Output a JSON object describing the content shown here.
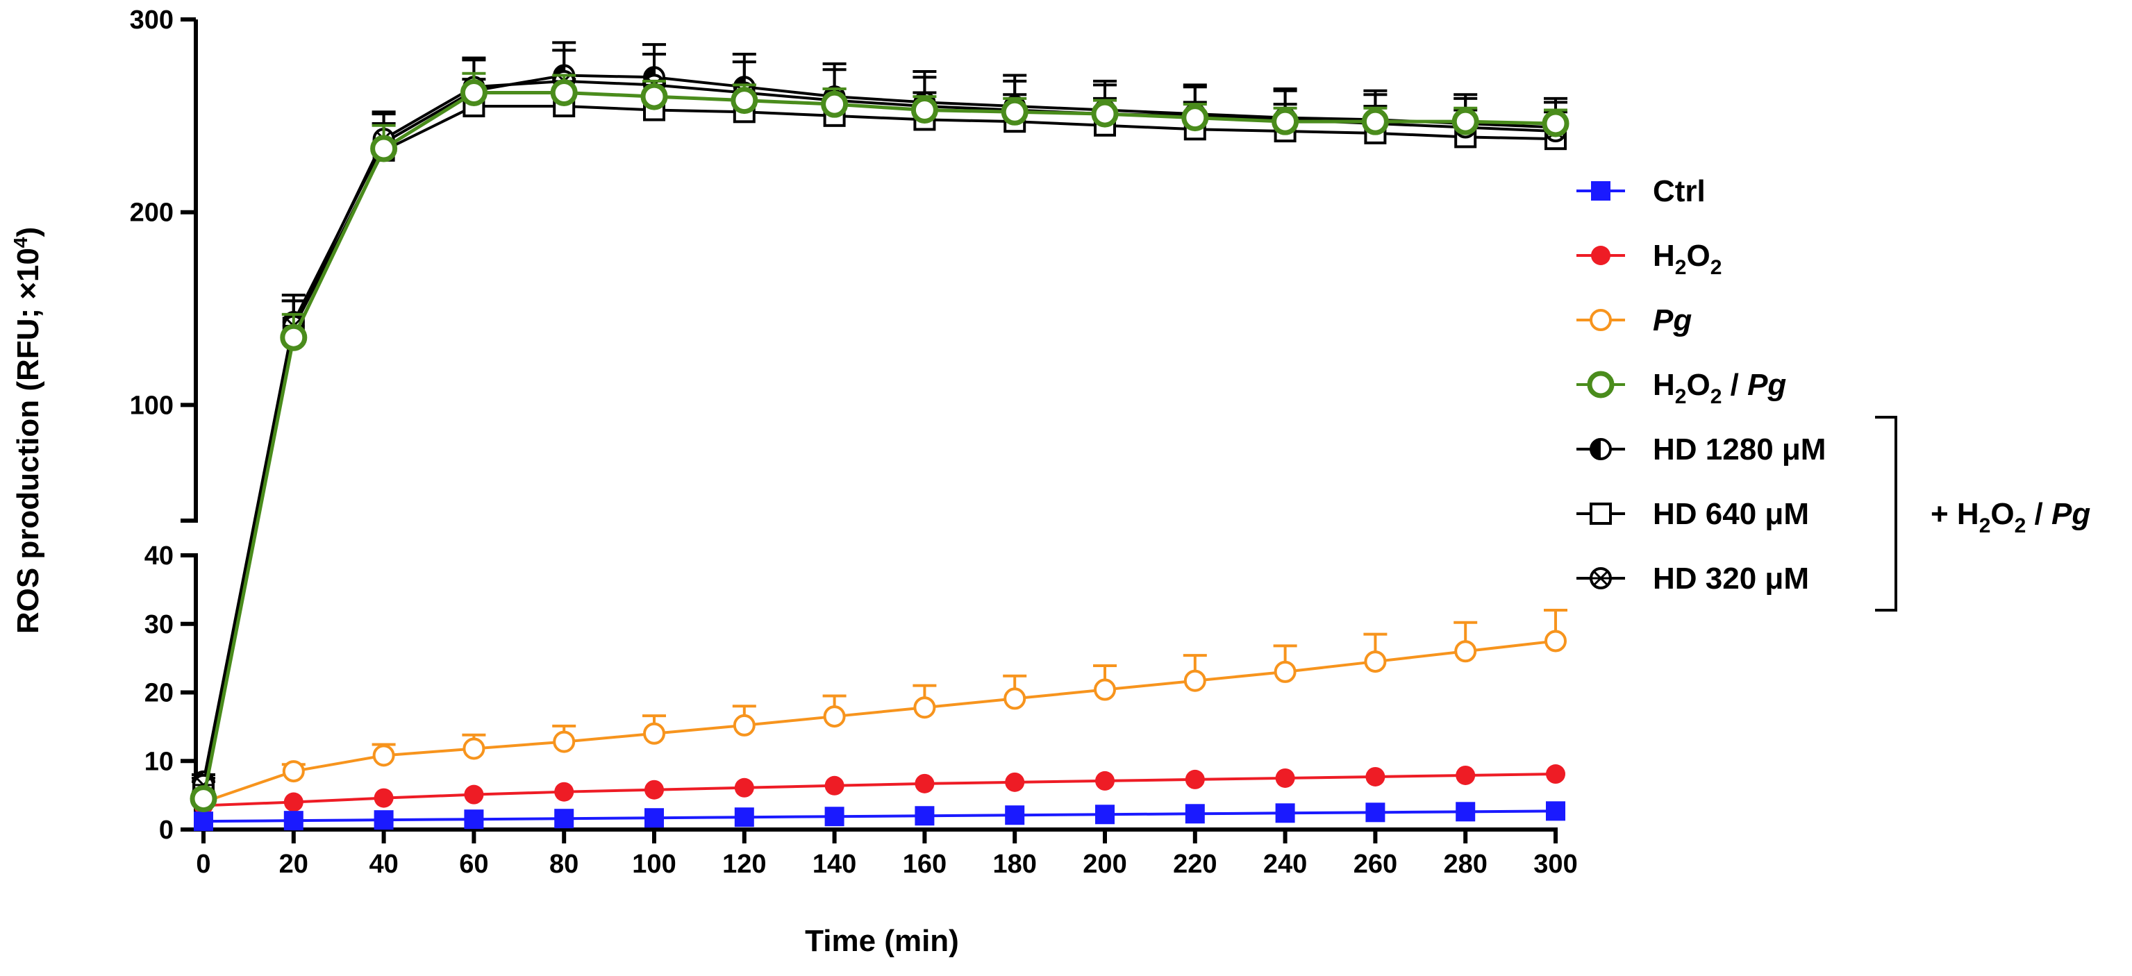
{
  "chart_data": {
    "type": "line",
    "xlabel": "Time (min)",
    "ylabel_prefix": "ROS production (RFU; ×10",
    "ylabel_exp": "4",
    "ylabel_suffix": ")",
    "x": [
      0,
      20,
      40,
      60,
      80,
      100,
      120,
      140,
      160,
      180,
      200,
      220,
      240,
      260,
      280,
      300
    ],
    "x_tick_labels": [
      "0",
      "20",
      "40",
      "60",
      "80",
      "100",
      "120",
      "140",
      "160",
      "180",
      "200",
      "220",
      "240",
      "260",
      "280",
      "300"
    ],
    "xlim": [
      0,
      300
    ],
    "y_broken_axis": {
      "lower_range": [
        0,
        40
      ],
      "upper_range": [
        40,
        300
      ],
      "lower_ticks": [
        "0",
        "10",
        "20",
        "30",
        "40"
      ],
      "upper_ticks": [
        "100",
        "200",
        "300"
      ]
    },
    "series": [
      {
        "name": "Ctrl",
        "color": "#1a1aff",
        "marker": "square-filled",
        "values": [
          1.2,
          1.3,
          1.4,
          1.5,
          1.6,
          1.7,
          1.8,
          1.9,
          2.0,
          2.1,
          2.2,
          2.3,
          2.4,
          2.5,
          2.6,
          2.7
        ],
        "errors": [
          0,
          0,
          0,
          0,
          0,
          0,
          0,
          0,
          0,
          0,
          0,
          0,
          0,
          0,
          0,
          0
        ]
      },
      {
        "name": "H2O2",
        "color": "#ee1c25",
        "marker": "circle-filled",
        "values": [
          3.5,
          4.0,
          4.6,
          5.1,
          5.5,
          5.8,
          6.1,
          6.4,
          6.7,
          6.9,
          7.1,
          7.3,
          7.5,
          7.7,
          7.9,
          8.1
        ],
        "errors": [
          0,
          0,
          0,
          0,
          0,
          0,
          0,
          0,
          0,
          0,
          0,
          0,
          0,
          0,
          0,
          0
        ]
      },
      {
        "name": "Pg",
        "color": "#f7941d",
        "marker": "circle-open",
        "values": [
          4.0,
          8.5,
          10.8,
          11.8,
          12.8,
          14.0,
          15.2,
          16.5,
          17.8,
          19.1,
          20.4,
          21.7,
          23.0,
          24.5,
          26.0,
          27.5
        ],
        "errors": [
          0.5,
          1.0,
          1.6,
          2.0,
          2.3,
          2.6,
          2.8,
          3.0,
          3.2,
          3.3,
          3.5,
          3.7,
          3.8,
          4.0,
          4.2,
          4.5
        ]
      },
      {
        "name": "H2O2 / Pg",
        "color": "#4a8c1c",
        "marker": "circle-open-thick",
        "values": [
          4.5,
          135,
          233,
          262,
          262,
          260,
          258,
          256,
          253,
          252,
          251,
          249,
          247,
          247,
          247,
          246
        ],
        "errors": [
          1,
          12,
          12,
          10,
          9,
          8,
          8,
          8,
          7,
          7,
          7,
          7,
          7,
          7,
          7,
          7
        ]
      },
      {
        "name": "HD 1280 μM",
        "color": "#000000",
        "marker": "circle-half",
        "values": [
          7.0,
          143,
          236,
          263,
          271,
          270,
          265,
          260,
          257,
          255,
          253,
          251,
          249,
          248,
          246,
          244
        ],
        "errors": [
          1,
          14,
          15,
          16,
          17,
          17,
          17,
          17,
          16,
          16,
          15,
          15,
          15,
          15,
          15,
          15
        ]
      },
      {
        "name": "HD 640 μM",
        "color": "#000000",
        "marker": "square-open",
        "values": [
          6.0,
          140,
          232,
          255,
          255,
          253,
          252,
          250,
          248,
          247,
          245,
          243,
          242,
          241,
          239,
          238
        ],
        "errors": [
          1,
          14,
          14,
          14,
          14,
          14,
          14,
          14,
          14,
          14,
          14,
          14,
          14,
          14,
          14,
          14
        ]
      },
      {
        "name": "HD 320 μM",
        "color": "#000000",
        "marker": "circle-cross",
        "values": [
          6.5,
          141,
          238,
          265,
          268,
          266,
          262,
          258,
          255,
          253,
          251,
          250,
          248,
          246,
          244,
          242
        ],
        "errors": [
          1,
          13,
          14,
          15,
          16,
          16,
          16,
          16,
          15,
          15,
          15,
          15,
          15,
          15,
          15,
          15
        ]
      }
    ],
    "legend": {
      "position": "right",
      "items": [
        {
          "key": "ctrl",
          "label": "Ctrl"
        },
        {
          "key": "h2o2",
          "label_parts": [
            "H",
            "2",
            "O",
            "2"
          ]
        },
        {
          "key": "pg",
          "label": "Pg"
        },
        {
          "key": "h2o2pg",
          "label_parts": [
            "H",
            "2",
            "O",
            "2",
            " / ",
            "Pg"
          ]
        },
        {
          "key": "hd1280",
          "label": "HD 1280 μM"
        },
        {
          "key": "hd640",
          "label": "HD 640 μM"
        },
        {
          "key": "hd320",
          "label": "HD 320 μM"
        }
      ],
      "group_label_parts": [
        "+ H",
        "2",
        "O",
        "2",
        " / ",
        "Pg"
      ]
    }
  }
}
